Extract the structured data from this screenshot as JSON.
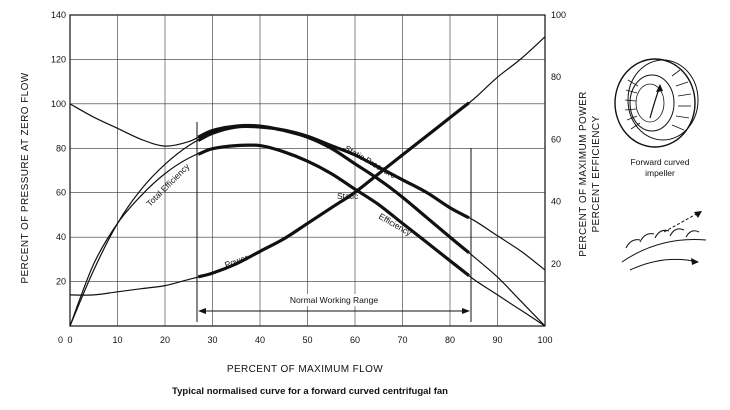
{
  "caption": "Typical normalised curve for a forward curved centrifugal fan",
  "impeller_label_line1": "Forward curved",
  "impeller_label_line2": "impeller",
  "chart_data": {
    "type": "line",
    "xlabel": "PERCENT OF MAXIMUM FLOW",
    "ylabel_left": "PERCENT OF PRESSURE AT ZERO FLOW",
    "ylabel_right_1": "PERCENT OF MAXIMUM POWER",
    "ylabel_right_2": "PERCENT EFFICIENCY",
    "xlim": [
      0,
      100
    ],
    "ylim_left": [
      0,
      140
    ],
    "ylim_right": [
      0,
      100
    ],
    "x_ticks": [
      "0",
      "10",
      "20",
      "30",
      "40",
      "50",
      "60",
      "70",
      "80",
      "90",
      "100"
    ],
    "y_ticks_left": [
      "0",
      "20",
      "40",
      "60",
      "80",
      "100",
      "120",
      "140"
    ],
    "y_ticks_right": [
      "20",
      "40",
      "60",
      "80",
      "100"
    ],
    "grid": true,
    "normal_working_range": {
      "label": "Normal Working Range",
      "x": [
        28,
        84
      ]
    },
    "series": [
      {
        "name": "Static Pressure",
        "axis": "left",
        "bold_range": [
          27,
          84
        ],
        "x": [
          0,
          5,
          10,
          15,
          20,
          25,
          30,
          35,
          40,
          45,
          50,
          55,
          60,
          65,
          70,
          75,
          80,
          84,
          90,
          95,
          100
        ],
        "y": [
          100,
          94,
          89,
          84,
          81,
          83,
          88,
          90,
          90,
          88,
          85,
          80,
          73,
          66,
          58,
          49,
          40,
          33,
          22,
          11,
          0
        ]
      },
      {
        "name": "Total Efficiency",
        "axis": "right",
        "bold_range": [
          27,
          84
        ],
        "x": [
          0,
          5,
          10,
          15,
          20,
          25,
          30,
          35,
          40,
          45,
          50,
          55,
          60,
          65,
          70,
          75,
          80,
          85,
          90,
          95,
          100
        ],
        "y": [
          0,
          18,
          33,
          44,
          52,
          58,
          62,
          64,
          64,
          63,
          61,
          58,
          55,
          51,
          47,
          43,
          38,
          34,
          29,
          24,
          18
        ]
      },
      {
        "name": "Static Efficiency",
        "axis": "right",
        "bold_range": [
          27,
          84
        ],
        "x": [
          0,
          5,
          10,
          15,
          20,
          25,
          30,
          35,
          40,
          45,
          50,
          55,
          60,
          65,
          70,
          75,
          80,
          85,
          90,
          95,
          100
        ],
        "y": [
          0,
          20,
          33,
          42,
          49,
          54,
          57,
          58,
          58,
          56,
          53,
          49,
          44,
          39,
          33,
          27,
          21,
          15,
          10,
          5,
          0
        ]
      },
      {
        "name": "Power",
        "axis": "right",
        "bold_range": [
          27,
          84
        ],
        "x": [
          0,
          5,
          10,
          15,
          20,
          25,
          30,
          35,
          40,
          45,
          50,
          55,
          60,
          65,
          70,
          75,
          80,
          85,
          90,
          95,
          100
        ],
        "y": [
          10,
          10,
          11,
          12,
          13,
          15,
          17,
          20,
          24,
          28,
          33,
          38,
          43,
          49,
          55,
          61,
          67,
          73,
          80,
          86,
          93
        ]
      }
    ],
    "curve_labels": [
      {
        "text": "Static Pressure"
      },
      {
        "text": "Total Efficiency"
      },
      {
        "text": "Static"
      },
      {
        "text": "Efficiency"
      },
      {
        "text": "Power"
      }
    ]
  }
}
